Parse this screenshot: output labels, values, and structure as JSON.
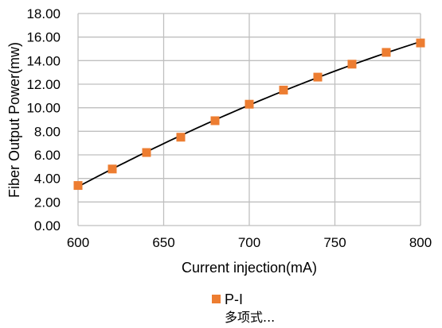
{
  "chart_data": {
    "type": "scatter",
    "xlabel": "Current injection(mA)",
    "ylabel": "Fiber Output Power(mw)",
    "xlim": [
      600,
      800
    ],
    "ylim": [
      0,
      18
    ],
    "x_ticks": [
      "600",
      "650",
      "700",
      "750",
      "800"
    ],
    "y_ticks": [
      "0.00",
      "2.00",
      "4.00",
      "6.00",
      "8.00",
      "10.00",
      "12.00",
      "14.00",
      "16.00",
      "18.00"
    ],
    "grid": true,
    "legend_position": "bottom",
    "series": [
      {
        "name": "P-I",
        "marker": "square",
        "color": "#ED7D31",
        "x": [
          600,
          620,
          640,
          660,
          680,
          700,
          720,
          740,
          760,
          780,
          800
        ],
        "y": [
          3.4,
          4.8,
          6.2,
          7.5,
          8.9,
          10.3,
          11.5,
          12.6,
          13.7,
          14.7,
          15.5
        ]
      }
    ],
    "trendline": {
      "name": "多项式...",
      "type": "polynomial",
      "color": "#000000"
    }
  }
}
